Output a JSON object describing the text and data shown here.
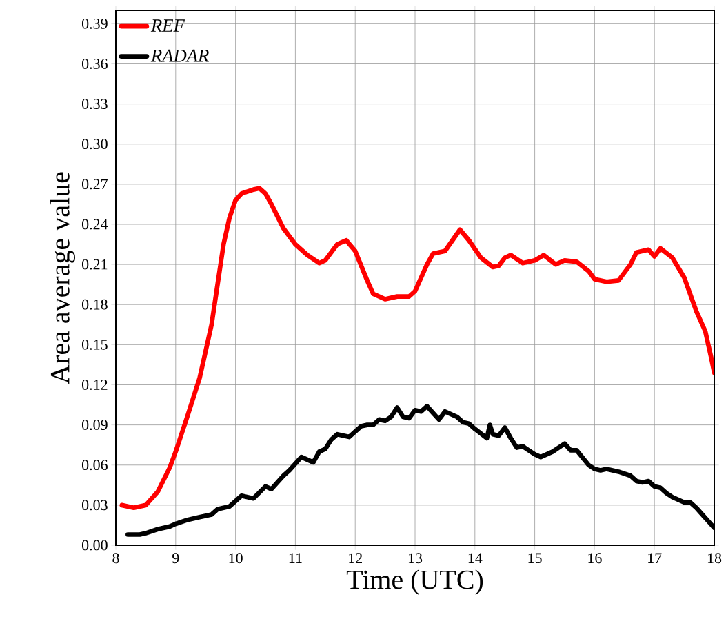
{
  "chart_data": {
    "type": "line",
    "xlabel": "Time (UTC)",
    "ylabel": "Area average value",
    "xlim": [
      8,
      18
    ],
    "xticks": [
      8,
      9,
      10,
      11,
      12,
      13,
      14,
      15,
      16,
      17,
      18
    ],
    "ylim": [
      0,
      0.4
    ],
    "yticks": [
      {
        "value": 0,
        "label": "0.00"
      },
      0.03,
      0.06,
      0.09,
      0.12,
      0.15,
      0.18,
      0.21,
      0.24,
      0.27,
      {
        "value": 0.3,
        "label": "0.30"
      },
      0.33,
      0.36,
      0.39
    ],
    "grid": true,
    "legend": "top left",
    "marker": "none",
    "line_style": "solid",
    "series": [
      {
        "name": "REF",
        "color": "#ff0000",
        "x": [
          8.1,
          8.3,
          8.5,
          8.7,
          8.9,
          9.0,
          9.2,
          9.4,
          9.6,
          9.8,
          9.9,
          10.0,
          10.1,
          10.3,
          10.4,
          10.5,
          10.6,
          10.8,
          11.0,
          11.2,
          11.4,
          11.5,
          11.7,
          11.85,
          12.0,
          12.2,
          12.3,
          12.5,
          12.7,
          12.9,
          13.0,
          13.2,
          13.3,
          13.5,
          13.75,
          13.9,
          14.1,
          14.3,
          14.4,
          14.5,
          14.6,
          14.8,
          15.0,
          15.15,
          15.35,
          15.5,
          15.7,
          15.9,
          16.0,
          16.2,
          16.4,
          16.6,
          16.7,
          16.9,
          17.0,
          17.1,
          17.3,
          17.5,
          17.7,
          17.85,
          17.95,
          18.0
        ],
        "values": [
          0.03,
          0.028,
          0.03,
          0.04,
          0.058,
          0.07,
          0.097,
          0.125,
          0.165,
          0.225,
          0.245,
          0.258,
          0.263,
          0.266,
          0.267,
          0.263,
          0.255,
          0.237,
          0.225,
          0.217,
          0.211,
          0.213,
          0.225,
          0.228,
          0.22,
          0.198,
          0.188,
          0.184,
          0.186,
          0.186,
          0.19,
          0.21,
          0.218,
          0.22,
          0.236,
          0.228,
          0.215,
          0.208,
          0.209,
          0.215,
          0.217,
          0.211,
          0.213,
          0.217,
          0.21,
          0.213,
          0.212,
          0.205,
          0.199,
          0.197,
          0.198,
          0.21,
          0.219,
          0.221,
          0.216,
          0.222,
          0.215,
          0.2,
          0.175,
          0.16,
          0.14,
          0.129
        ]
      },
      {
        "name": "RADAR",
        "color": "#000000",
        "x": [
          8.2,
          8.4,
          8.5,
          8.7,
          8.9,
          9.0,
          9.2,
          9.4,
          9.6,
          9.7,
          9.9,
          10.1,
          10.3,
          10.5,
          10.6,
          10.8,
          10.9,
          11.1,
          11.2,
          11.3,
          11.4,
          11.5,
          11.6,
          11.7,
          11.9,
          12.0,
          12.1,
          12.2,
          12.3,
          12.4,
          12.5,
          12.6,
          12.7,
          12.8,
          12.9,
          13.0,
          13.1,
          13.2,
          13.3,
          13.4,
          13.5,
          13.7,
          13.8,
          13.9,
          14.0,
          14.2,
          14.25,
          14.3,
          14.4,
          14.5,
          14.6,
          14.7,
          14.8,
          15.0,
          15.1,
          15.3,
          15.4,
          15.5,
          15.6,
          15.7,
          15.9,
          16.0,
          16.1,
          16.2,
          16.4,
          16.6,
          16.7,
          16.8,
          16.9,
          17.0,
          17.1,
          17.2,
          17.3,
          17.5,
          17.6,
          17.7,
          17.8,
          17.9,
          18.0
        ],
        "values": [
          0.008,
          0.008,
          0.009,
          0.012,
          0.014,
          0.016,
          0.019,
          0.021,
          0.023,
          0.027,
          0.029,
          0.037,
          0.035,
          0.044,
          0.042,
          0.052,
          0.056,
          0.066,
          0.064,
          0.062,
          0.07,
          0.072,
          0.079,
          0.083,
          0.081,
          0.085,
          0.089,
          0.09,
          0.09,
          0.094,
          0.093,
          0.096,
          0.103,
          0.096,
          0.095,
          0.101,
          0.1,
          0.104,
          0.099,
          0.094,
          0.1,
          0.096,
          0.092,
          0.091,
          0.087,
          0.08,
          0.09,
          0.083,
          0.082,
          0.088,
          0.08,
          0.073,
          0.074,
          0.068,
          0.066,
          0.07,
          0.073,
          0.076,
          0.071,
          0.071,
          0.06,
          0.057,
          0.056,
          0.057,
          0.055,
          0.052,
          0.048,
          0.047,
          0.048,
          0.044,
          0.043,
          0.039,
          0.036,
          0.032,
          0.032,
          0.028,
          0.023,
          0.018,
          0.013
        ]
      }
    ]
  }
}
